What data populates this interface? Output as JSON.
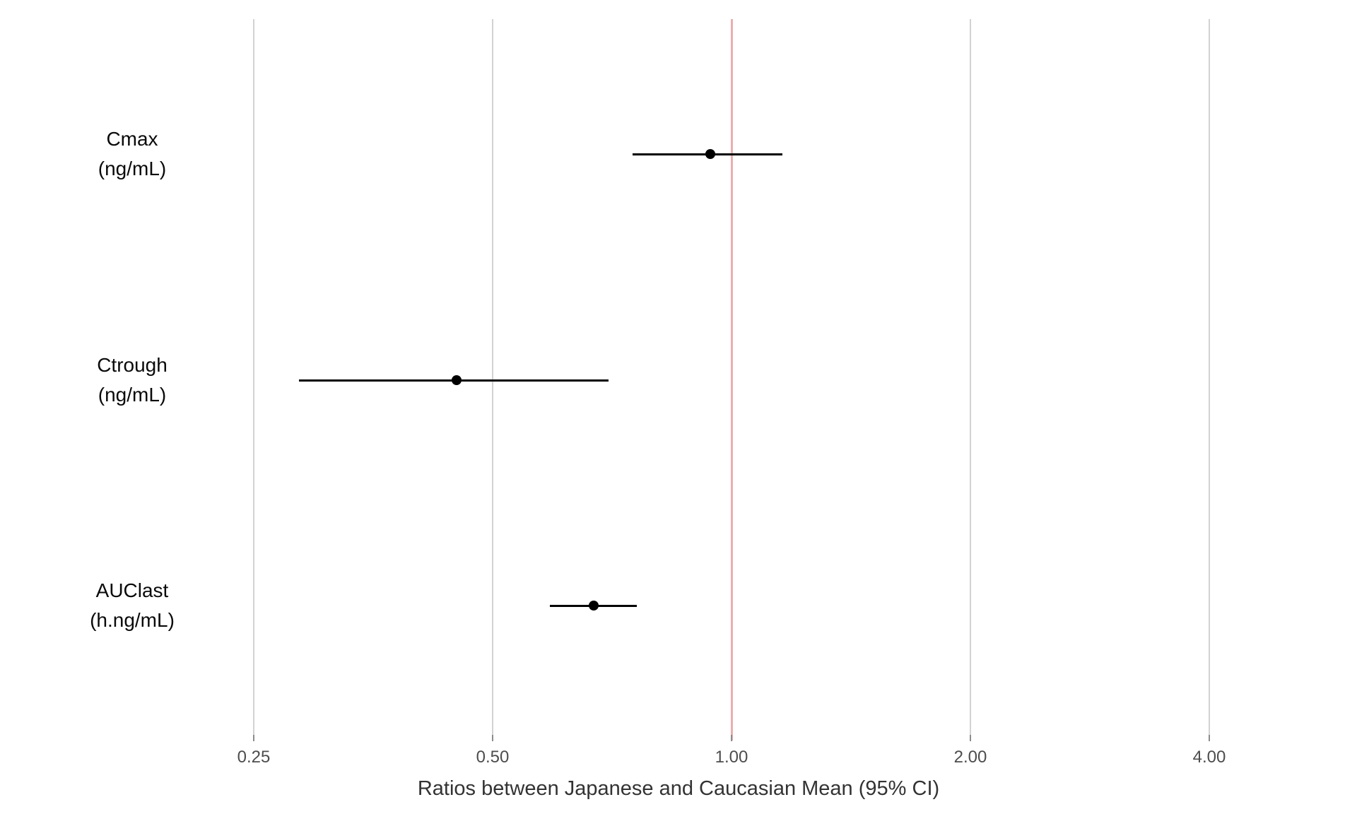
{
  "chart_data": {
    "type": "scatter",
    "subtype": "forest-plot-with-95ci-error-bars",
    "title": "",
    "xlabel": "Ratios between Japanese and Caucasian Mean (95% CI)",
    "ylabel": "",
    "x_scale": "log2",
    "xlim": [
      0.21,
      4.7
    ],
    "grid": "vertical-only",
    "legend": "none",
    "x_ticks": [
      {
        "value": 0.25,
        "label": "0.25"
      },
      {
        "value": 0.5,
        "label": "0.50"
      },
      {
        "value": 1.0,
        "label": "1.00"
      },
      {
        "value": 2.0,
        "label": "2.00"
      },
      {
        "value": 4.0,
        "label": "4.00"
      }
    ],
    "reference_line": {
      "value": 1.0,
      "color": "#ecaeae"
    },
    "rows": [
      {
        "label_line1": "Cmax",
        "label_line2": "(ng/mL)",
        "ratio": 0.94,
        "ci_low": 0.75,
        "ci_high": 1.16
      },
      {
        "label_line1": "Ctrough",
        "label_line2": "(ng/mL)",
        "ratio": 0.45,
        "ci_low": 0.285,
        "ci_high": 0.7
      },
      {
        "label_line1": "AUClast",
        "label_line2": "(h.ng/mL)",
        "ratio": 0.67,
        "ci_low": 0.59,
        "ci_high": 0.76
      }
    ],
    "colors": {
      "background": "#ffffff",
      "point": "#000000",
      "ci_line": "#000000",
      "gridline": "#d2d2d2",
      "tick_mark": "#8c8c8c",
      "tick_label": "#4d4d4d",
      "axis_title": "#333333",
      "row_label": "#0a0a0a",
      "reference_line": "#ecaeae"
    }
  }
}
